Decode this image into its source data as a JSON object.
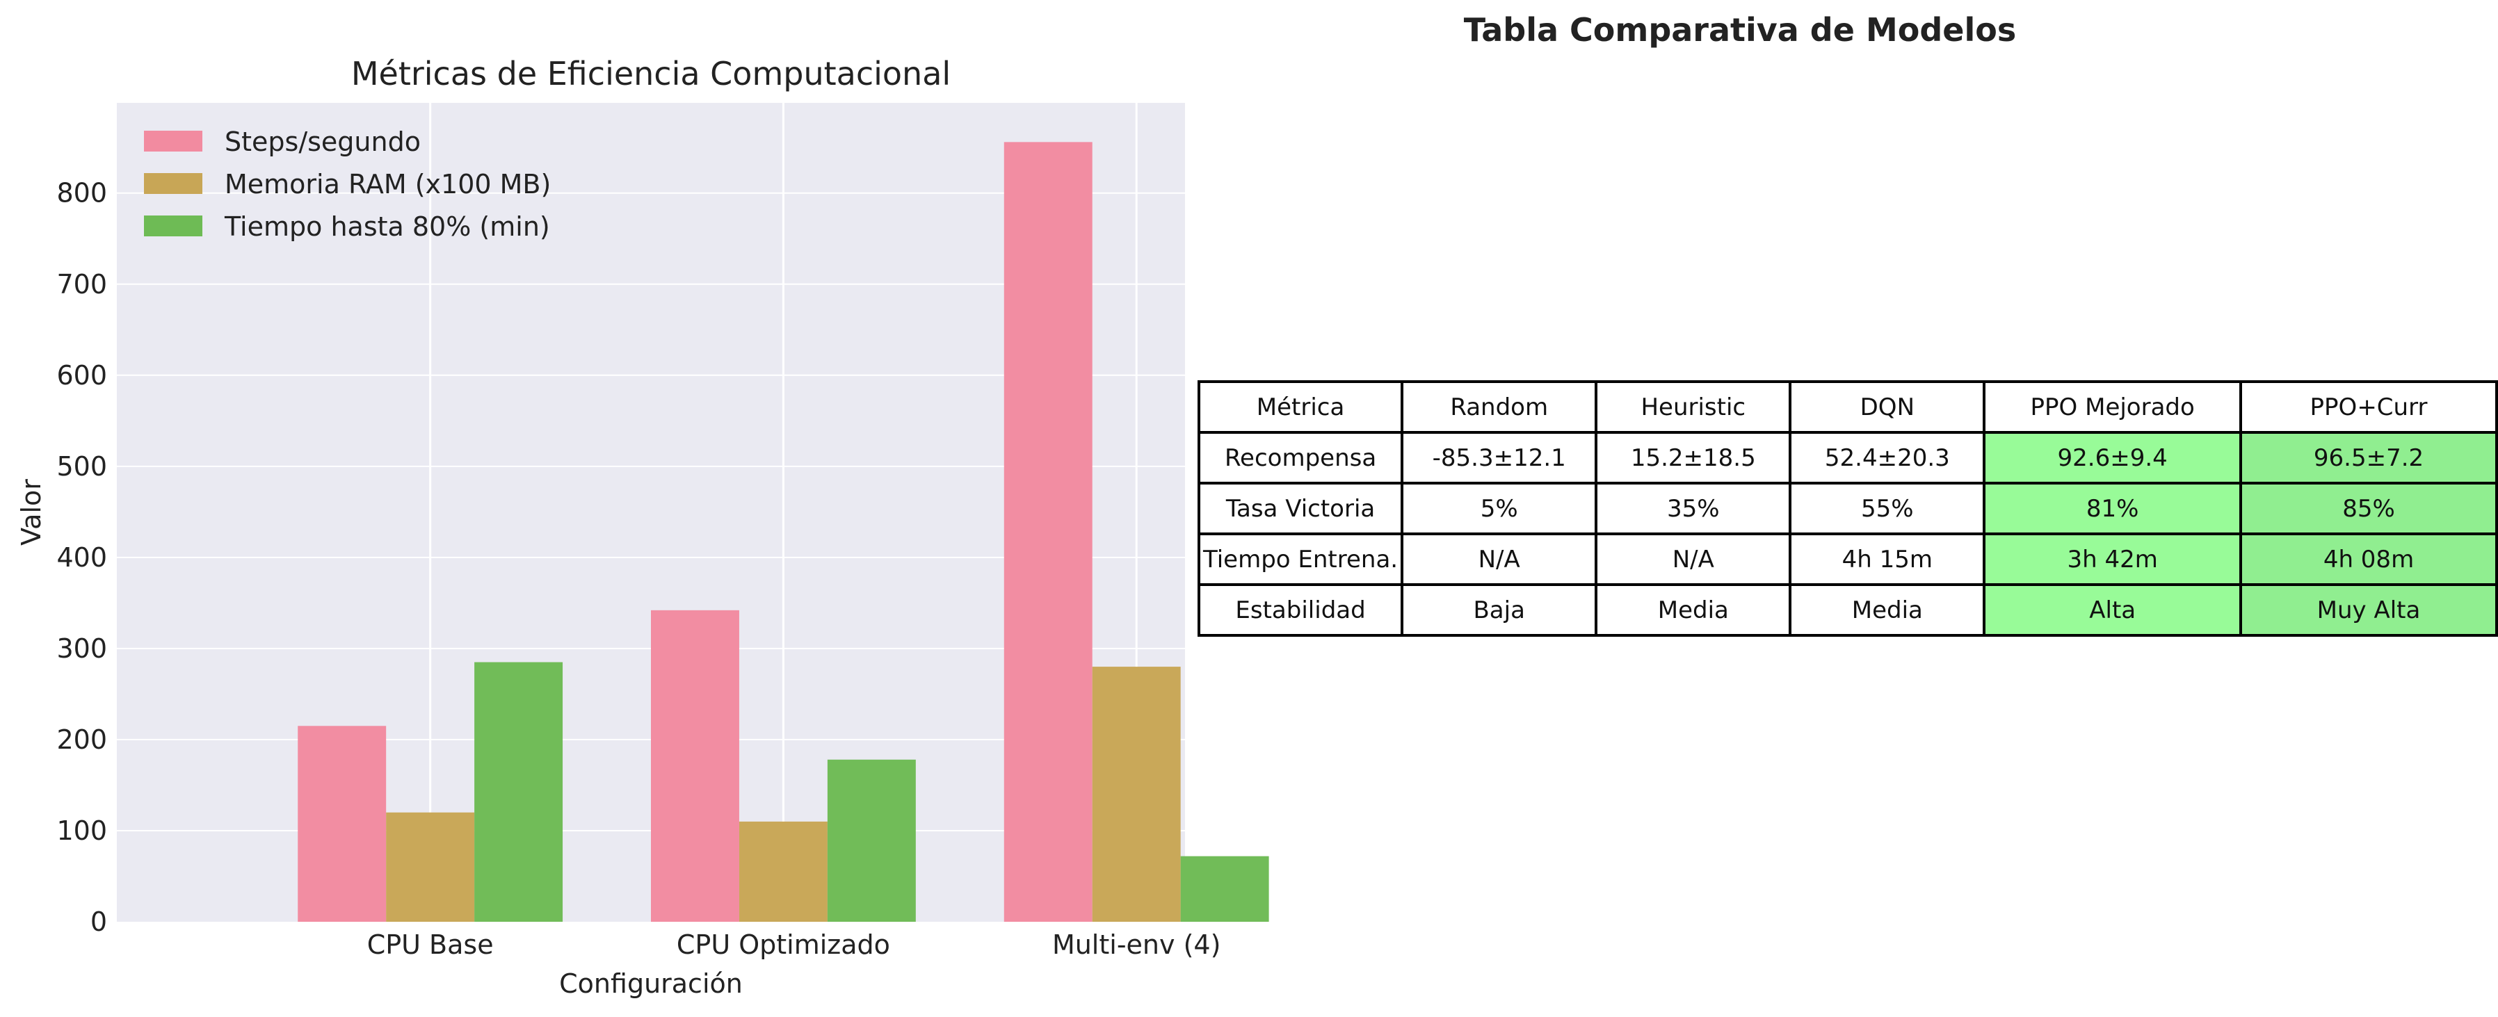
{
  "chart_data": {
    "type": "bar",
    "title": "Métricas de Eficiencia Computacional",
    "xlabel": "Configuración",
    "ylabel": "Valor",
    "categories": [
      "CPU Base",
      "CPU Optimizado",
      "Multi-env (4)"
    ],
    "series": [
      {
        "name": "Steps/segundo",
        "values": [
          215,
          342,
          856
        ],
        "color": "#f28ba0"
      },
      {
        "name": "Memoria RAM (x100 MB)",
        "values": [
          120,
          110,
          280
        ],
        "color": "#c8a656"
      },
      {
        "name": "Tiempo hasta 80% (min)",
        "values": [
          285,
          178,
          72
        ],
        "color": "#6ebb55"
      }
    ],
    "ylim": [
      0,
      899
    ],
    "yticks": [
      0,
      100,
      200,
      300,
      400,
      500,
      600,
      700,
      800
    ],
    "grid": true,
    "legend": "upper-left"
  },
  "table": {
    "title": "Tabla Comparativa de Modelos",
    "rows": [
      [
        "Métrica",
        "Random",
        "Heuristic",
        "DQN",
        "PPO Mejorado",
        "PPO+Curr"
      ],
      [
        "Recompensa",
        "-85.3±12.1",
        "15.2±18.5",
        "52.4±20.3",
        "92.6±9.4",
        "96.5±7.2"
      ],
      [
        "Tasa Victoria",
        "5%",
        "35%",
        "55%",
        "81%",
        "85%"
      ],
      [
        "Tiempo Entrena.",
        "N/A",
        "N/A",
        "4h 15m",
        "3h 42m",
        "4h 08m"
      ],
      [
        "Estabilidad",
        "Baja",
        "Media",
        "Media",
        "Alta",
        "Muy Alta"
      ]
    ],
    "highlight_colors": [
      "#98fb98",
      "#90ee90"
    ]
  }
}
